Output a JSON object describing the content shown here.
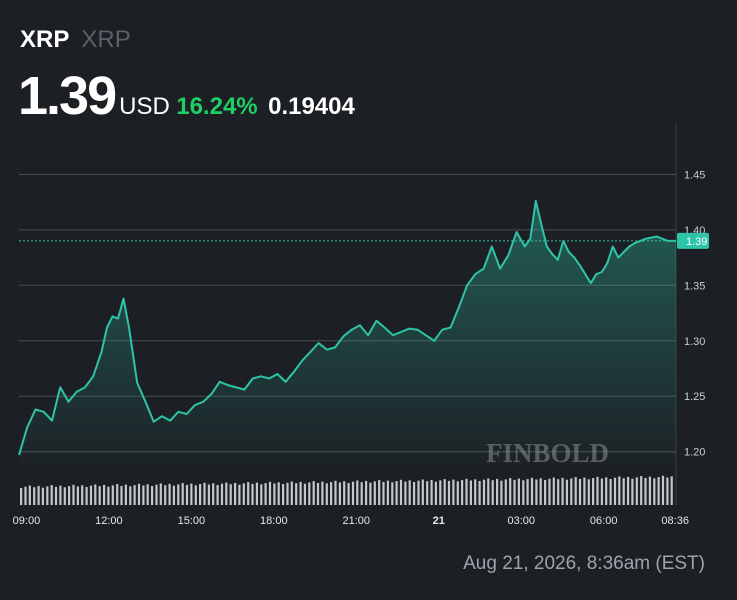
{
  "header": {
    "symbol": "XRP",
    "name": "XRP",
    "price": "1.39",
    "currency": "USD",
    "change_pct": "16.24%",
    "change_abs": "0.19404"
  },
  "timestamp": "Aug 21, 2026, 8:36am (EST)",
  "watermark": "FINBOLD",
  "colors": {
    "background": "#1c1f24",
    "line": "#2ec4a7",
    "positive": "#1fcf63",
    "grid": "#4a4e55",
    "volume": "#c4c7cc"
  },
  "chart_data": {
    "type": "area",
    "xlabel": "",
    "ylabel": "",
    "x_tick_labels": [
      {
        "label": "09:00",
        "x": 0.27
      },
      {
        "label": "12:00",
        "x": 3.27
      },
      {
        "label": "15:00",
        "x": 6.27
      },
      {
        "label": "18:00",
        "x": 9.27
      },
      {
        "label": "21:00",
        "x": 12.27
      },
      {
        "label": "21",
        "x": 15.27
      },
      {
        "label": "03:00",
        "x": 18.27
      },
      {
        "label": "06:00",
        "x": 21.27
      },
      {
        "label": "08:36",
        "x": 23.87
      }
    ],
    "xlim": [
      0,
      23.9
    ],
    "y_ticks": [
      1.2,
      1.25,
      1.3,
      1.35,
      1.4,
      1.45
    ],
    "ylim": [
      1.188,
      1.49
    ],
    "last_value": 1.39,
    "last_value_label": "1.39",
    "grid": true,
    "series": [
      {
        "x": [
          0,
          0.3,
          0.6,
          0.9,
          1.2,
          1.5,
          1.8,
          2.1,
          2.4,
          2.7,
          3.0,
          3.2,
          3.4,
          3.6,
          3.8,
          4.0,
          4.3,
          4.6,
          4.9,
          5.2,
          5.5,
          5.8,
          6.1,
          6.4,
          6.7,
          7.0,
          7.3,
          7.6,
          7.9,
          8.2,
          8.5,
          8.8,
          9.1,
          9.4,
          9.7,
          10.0,
          10.3,
          10.6,
          10.9,
          11.2,
          11.5,
          11.8,
          12.1,
          12.4,
          12.7,
          13.0,
          13.3,
          13.6,
          13.9,
          14.2,
          14.5,
          14.8,
          15.1,
          15.4,
          15.7,
          16.0,
          16.3,
          16.6,
          16.9,
          17.2,
          17.5,
          17.8,
          18.1,
          18.4,
          18.6,
          18.8,
          19.0,
          19.2,
          19.4,
          19.6,
          19.8,
          20.0,
          20.2,
          20.4,
          20.6,
          20.8,
          21.0,
          21.2,
          21.4,
          21.6,
          21.8,
          22.0,
          22.2,
          22.4,
          22.6,
          22.8,
          23.0,
          23.2,
          23.4,
          23.6,
          23.9
        ],
        "y": [
          1.197,
          1.222,
          1.238,
          1.236,
          1.228,
          1.258,
          1.245,
          1.254,
          1.258,
          1.268,
          1.29,
          1.312,
          1.322,
          1.32,
          1.338,
          1.312,
          1.262,
          1.245,
          1.227,
          1.232,
          1.228,
          1.236,
          1.234,
          1.242,
          1.245,
          1.252,
          1.263,
          1.26,
          1.258,
          1.256,
          1.266,
          1.268,
          1.266,
          1.27,
          1.263,
          1.272,
          1.282,
          1.29,
          1.298,
          1.292,
          1.294,
          1.304,
          1.31,
          1.314,
          1.305,
          1.318,
          1.312,
          1.305,
          1.308,
          1.311,
          1.31,
          1.305,
          1.3,
          1.31,
          1.312,
          1.33,
          1.35,
          1.36,
          1.365,
          1.385,
          1.365,
          1.377,
          1.398,
          1.385,
          1.392,
          1.426,
          1.405,
          1.385,
          1.378,
          1.373,
          1.39,
          1.38,
          1.375,
          1.368,
          1.36,
          1.352,
          1.36,
          1.362,
          1.37,
          1.385,
          1.375,
          1.38,
          1.385,
          1.388,
          1.39,
          1.392,
          1.393,
          1.394,
          1.392,
          1.39,
          1.39
        ]
      }
    ]
  }
}
